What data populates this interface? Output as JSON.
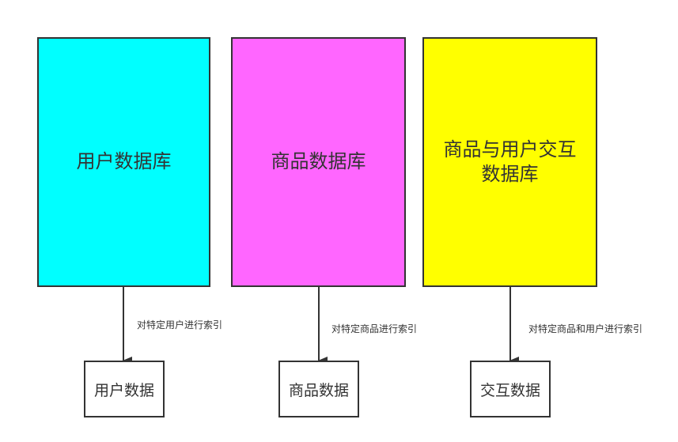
{
  "databases": [
    {
      "label_lines": [
        "用户数据库"
      ],
      "color": "#00FFFF"
    },
    {
      "label_lines": [
        "商品数据库"
      ],
      "color": "#FF66FF"
    },
    {
      "label_lines": [
        "商品与用户交互",
        "数据库"
      ],
      "color": "#FFFF00"
    }
  ],
  "outputs": [
    {
      "label": "用户数据"
    },
    {
      "label": "商品数据"
    },
    {
      "label": "交互数据"
    }
  ],
  "edges": [
    {
      "label": "对特定用户进行索引"
    },
    {
      "label": "对特定商品进行索引"
    },
    {
      "label": "对特定商品和用户进行索引"
    }
  ],
  "colors": {
    "stroke": "#333333"
  }
}
